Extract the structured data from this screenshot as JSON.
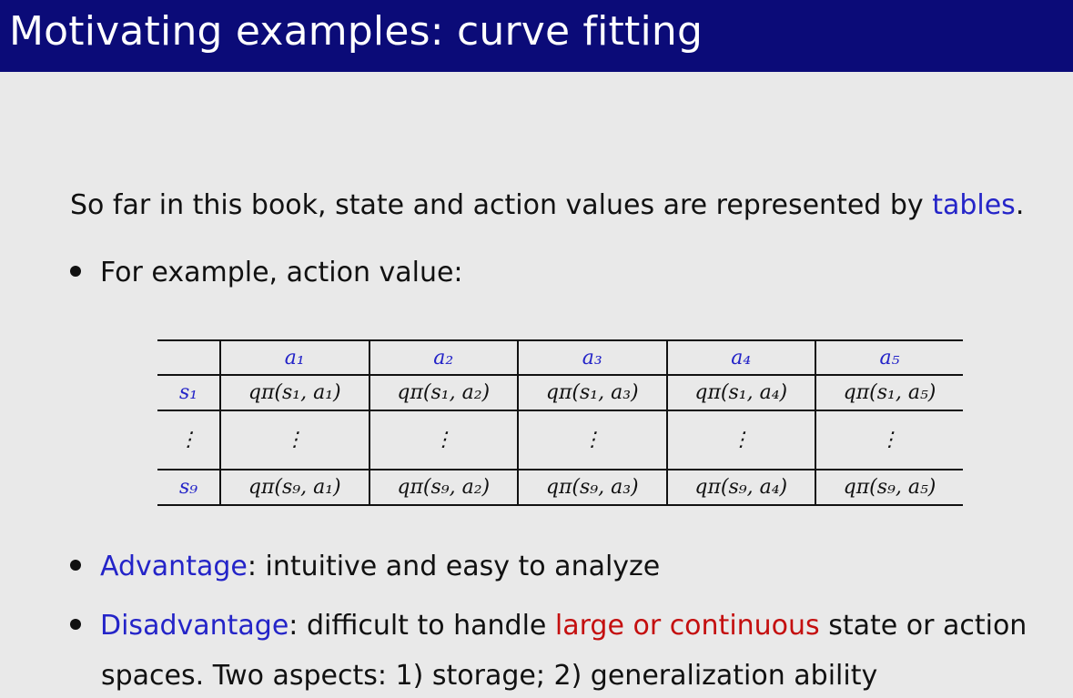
{
  "slide": {
    "title": "Motivating examples: curve fitting",
    "intro": {
      "prefix": "So far in this book, state and action values are represented by ",
      "highlight": "tables",
      "suffix": "."
    },
    "bullets": [
      {
        "text": "For example, action value:"
      },
      {
        "highlight": "Advantage",
        "text": ": intuitive and easy to analyze"
      },
      {
        "highlight": "Disadvantage",
        "text_before": ": difficult to handle ",
        "red_text": "large or continuous",
        "text_after": " state or action",
        "continuation": "spaces. Two aspects: 1) storage; 2) generalization ability"
      }
    ],
    "colors": {
      "title_bar": "#0b0b78",
      "highlight_blue": "#2424c8",
      "highlight_red": "#c40f0f",
      "background": "#e9e9e9"
    }
  },
  "table": {
    "headers": [
      "",
      "a₁",
      "a₂",
      "a₃",
      "a₄",
      "a₅"
    ],
    "rows": [
      {
        "label": "s₁",
        "cells": [
          "qπ(s₁, a₁)",
          "qπ(s₁, a₂)",
          "qπ(s₁, a₃)",
          "qπ(s₁, a₄)",
          "qπ(s₁, a₅)"
        ]
      },
      {
        "label": "⋮",
        "cells": [
          "⋮",
          "⋮",
          "⋮",
          "⋮",
          "⋮"
        ]
      },
      {
        "label": "s₉",
        "cells": [
          "qπ(s₉, a₁)",
          "qπ(s₉, a₂)",
          "qπ(s₉, a₃)",
          "qπ(s₉, a₄)",
          "qπ(s₉, a₅)"
        ]
      }
    ]
  }
}
